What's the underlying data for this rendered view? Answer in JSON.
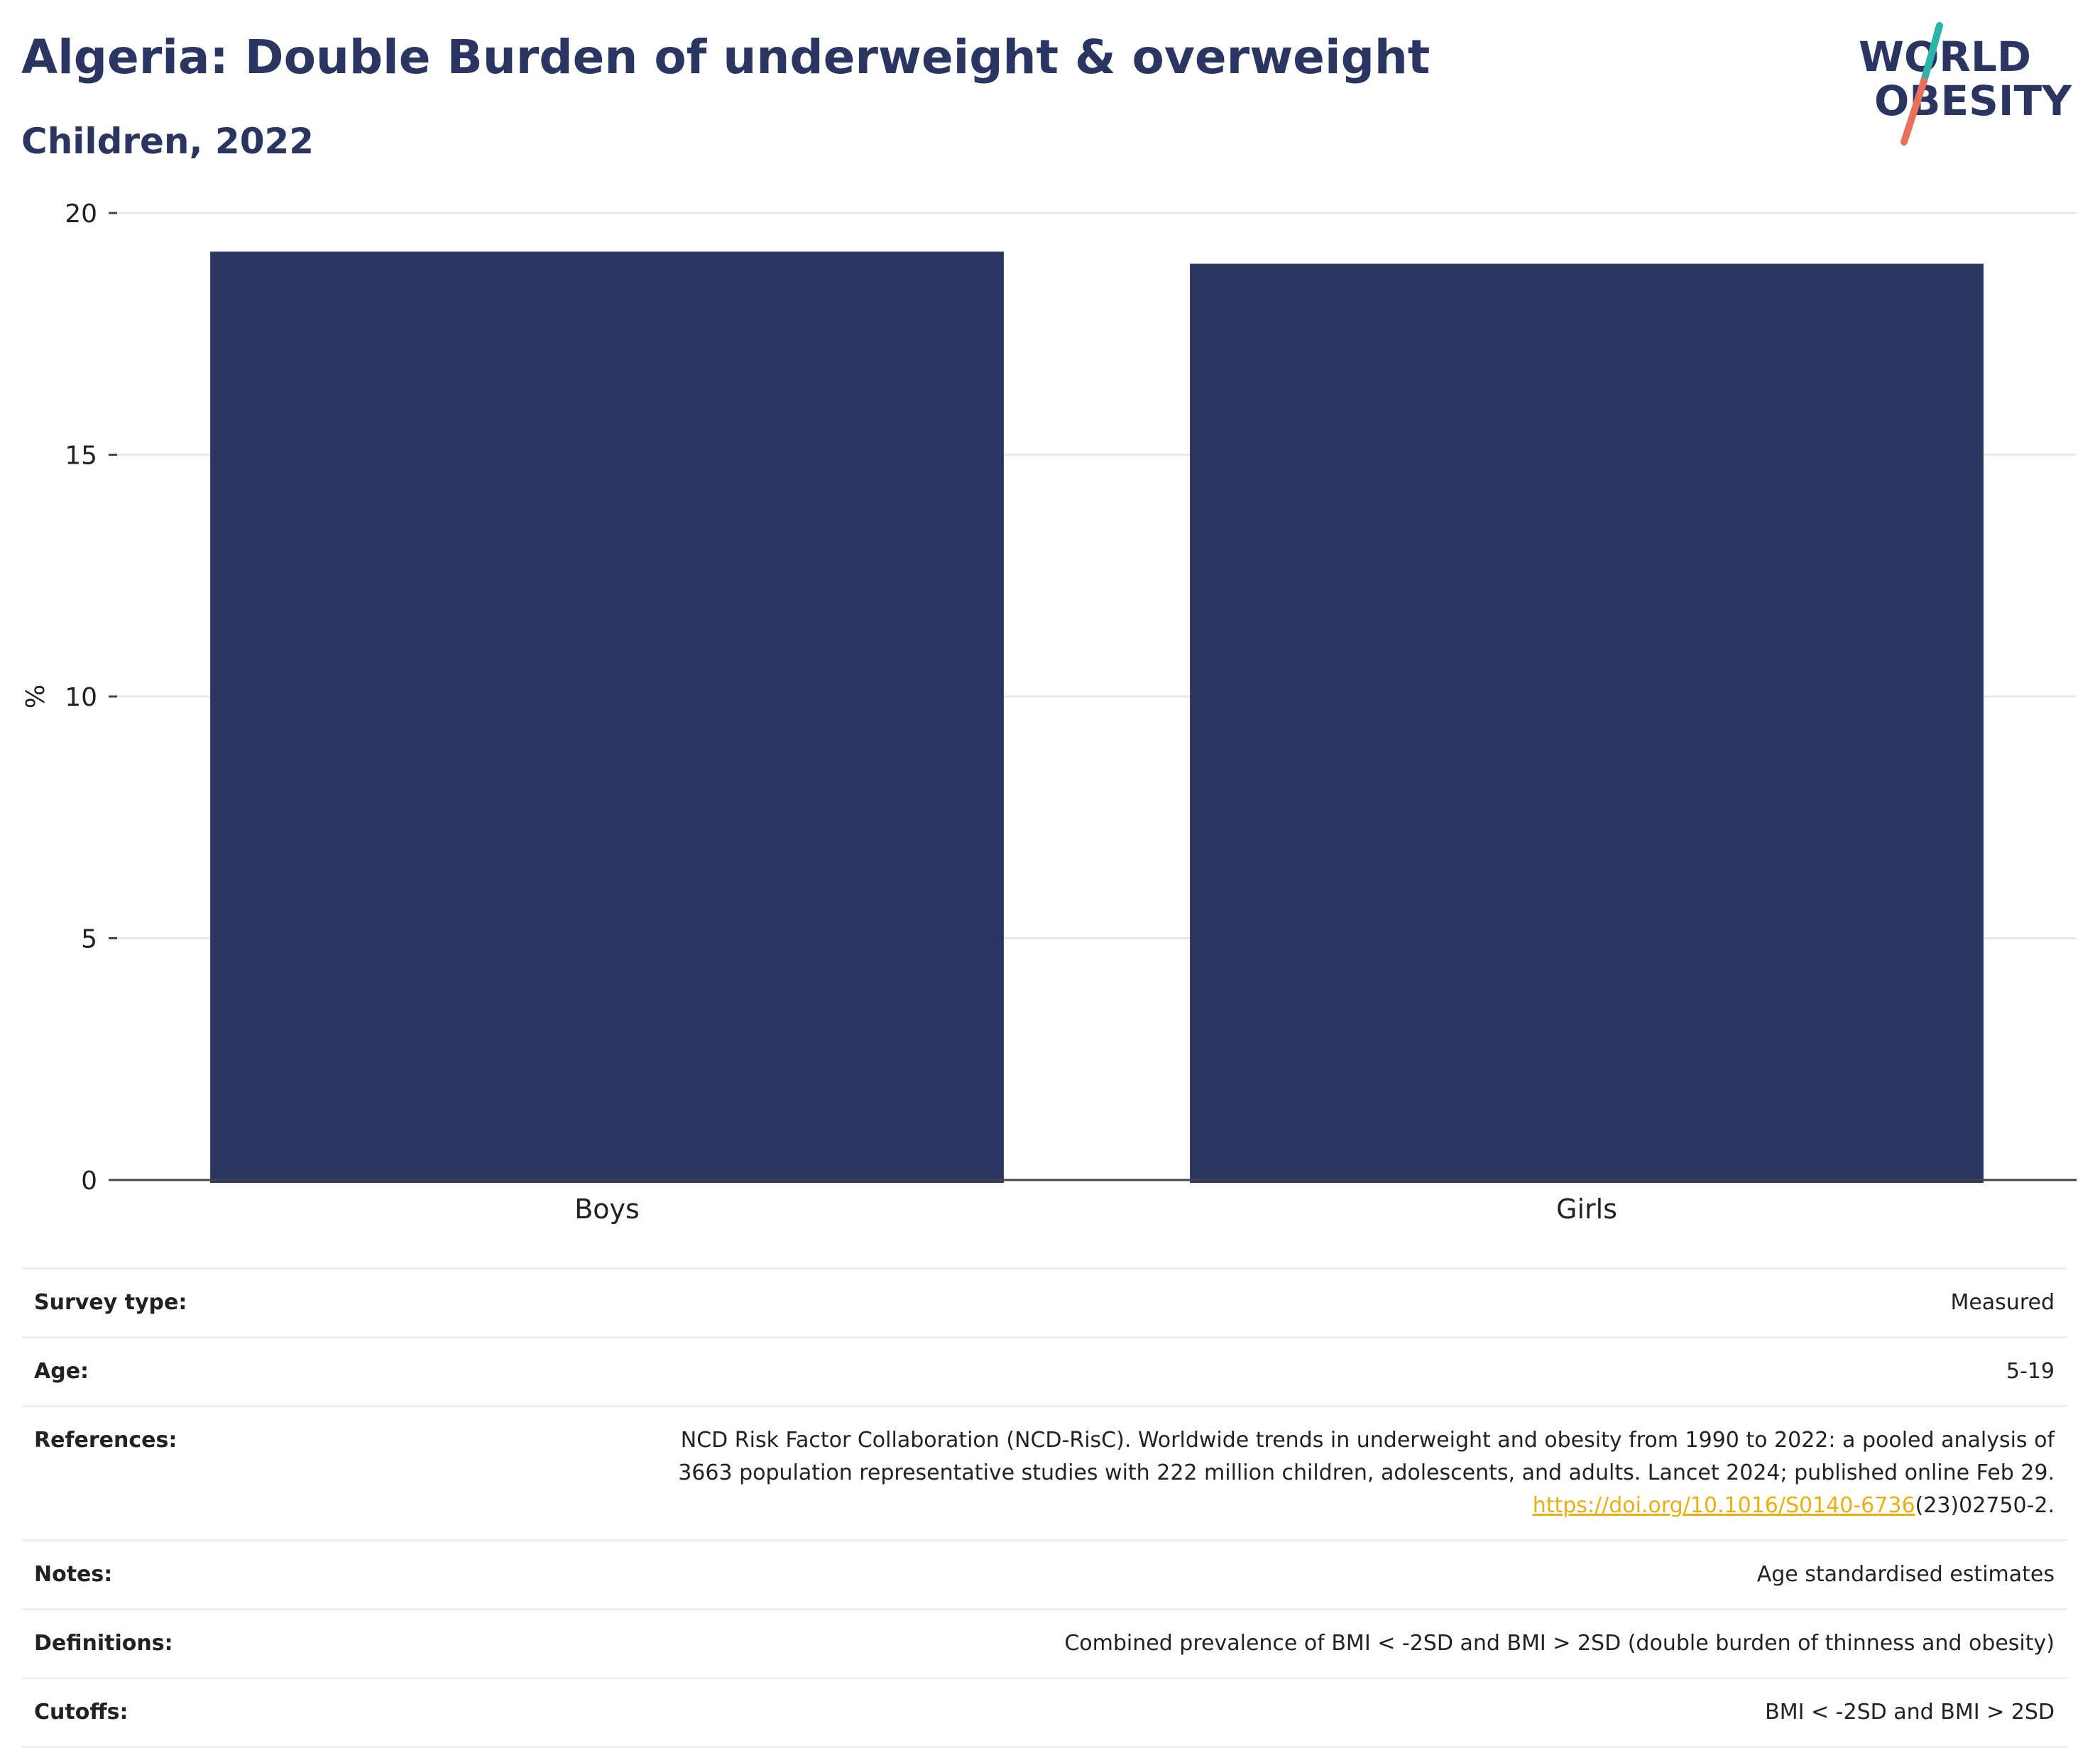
{
  "header": {
    "title": "Algeria: Double Burden of underweight & overweight",
    "subtitle": "Children, 2022"
  },
  "logo": {
    "line1": "WORLD",
    "line2": "OBESITY",
    "slash_top_color": "#2bb5a8",
    "slash_bottom_color": "#e9705a",
    "text_color": "#2b3561"
  },
  "chart_data": {
    "type": "bar",
    "categories": [
      "Boys",
      "Girls"
    ],
    "values": [
      19.2,
      18.95
    ],
    "title": "Algeria: Double Burden of underweight & overweight",
    "subtitle": "Children, 2022",
    "xlabel": "",
    "ylabel": "%",
    "ylim": [
      0,
      20
    ],
    "yticks": [
      0,
      5,
      10,
      15,
      20
    ],
    "grid": true,
    "bar_color": "#2b3561"
  },
  "meta": {
    "rows": [
      {
        "label": "Survey type:",
        "value": "Measured"
      },
      {
        "label": "Age:",
        "value": "5-19"
      },
      {
        "label": "References:",
        "value_lines": [
          "NCD Risk Factor Collaboration (NCD-RisC). Worldwide trends in underweight and obesity from 1990 to 2022: a pooled analysis of",
          "3663 population representative studies with 222 million children, adolescents, and adults. Lancet 2024; published online Feb 29."
        ],
        "link_text": "https://doi.org/10.1016/S0140-6736",
        "link_suffix": "(23)02750-2."
      },
      {
        "label": "Notes:",
        "value": "Age standardised estimates"
      },
      {
        "label": "Definitions:",
        "value": "Combined prevalence of BMI < -2SD and BMI > 2SD (double burden of thinness and obesity)"
      },
      {
        "label": "Cutoffs:",
        "value": "BMI < -2SD and BMI > 2SD"
      }
    ]
  }
}
